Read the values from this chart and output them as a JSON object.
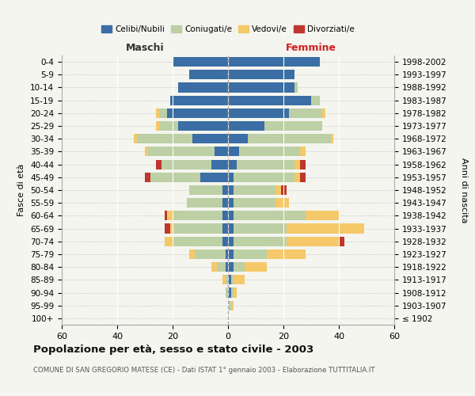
{
  "age_groups": [
    "100+",
    "95-99",
    "90-94",
    "85-89",
    "80-84",
    "75-79",
    "70-74",
    "65-69",
    "60-64",
    "55-59",
    "50-54",
    "45-49",
    "40-44",
    "35-39",
    "30-34",
    "25-29",
    "20-24",
    "15-19",
    "10-14",
    "5-9",
    "0-4"
  ],
  "birth_years": [
    "≤ 1902",
    "1903-1907",
    "1908-1912",
    "1913-1917",
    "1918-1922",
    "1923-1927",
    "1928-1932",
    "1933-1937",
    "1938-1942",
    "1943-1947",
    "1948-1952",
    "1953-1957",
    "1958-1962",
    "1963-1967",
    "1968-1972",
    "1973-1977",
    "1978-1982",
    "1983-1987",
    "1988-1992",
    "1993-1997",
    "1998-2002"
  ],
  "colors": {
    "celibi": "#3A6EA5",
    "coniugati": "#BDD0A5",
    "vedovi": "#F5C96A",
    "divorziati": "#C0362C"
  },
  "males": {
    "celibi": [
      0,
      0,
      0,
      0,
      1,
      1,
      2,
      2,
      2,
      2,
      2,
      10,
      6,
      5,
      13,
      18,
      22,
      21,
      18,
      14,
      20
    ],
    "coniugati": [
      0,
      0,
      1,
      1,
      3,
      11,
      18,
      18,
      18,
      13,
      12,
      18,
      18,
      24,
      20,
      7,
      3,
      0,
      0,
      0,
      0
    ],
    "vedovi": [
      0,
      0,
      0,
      1,
      2,
      2,
      3,
      1,
      2,
      0,
      0,
      0,
      0,
      1,
      1,
      1,
      1,
      0,
      0,
      0,
      0
    ],
    "divorziati": [
      0,
      0,
      0,
      0,
      0,
      0,
      0,
      2,
      1,
      0,
      0,
      2,
      2,
      0,
      0,
      0,
      0,
      0,
      0,
      0,
      0
    ]
  },
  "females": {
    "celibi": [
      0,
      0,
      1,
      1,
      2,
      2,
      2,
      2,
      2,
      2,
      2,
      2,
      3,
      4,
      7,
      13,
      22,
      30,
      24,
      24,
      33
    ],
    "coniugati": [
      0,
      1,
      1,
      1,
      4,
      12,
      19,
      19,
      26,
      15,
      15,
      22,
      21,
      22,
      30,
      21,
      12,
      3,
      1,
      0,
      0
    ],
    "vedovi": [
      0,
      1,
      1,
      4,
      8,
      14,
      19,
      28,
      12,
      5,
      2,
      2,
      2,
      2,
      1,
      0,
      1,
      0,
      0,
      0,
      0
    ],
    "divorziati": [
      0,
      0,
      0,
      0,
      0,
      0,
      2,
      0,
      0,
      0,
      2,
      2,
      2,
      0,
      0,
      0,
      0,
      0,
      0,
      0,
      0
    ]
  },
  "title": "Popolazione per età, sesso e stato civile - 2003",
  "subtitle": "COMUNE DI SAN GREGORIO MATESE (CE) - Dati ISTAT 1° gennaio 2003 - Elaborazione TUTTITALIA.IT",
  "xlabel_left": "Maschi",
  "xlabel_right": "Femmine",
  "ylabel_left": "Fasce di età",
  "ylabel_right": "Anni di nascita",
  "xlim": 60,
  "legend_labels": [
    "Celibi/Nubili",
    "Coniugati/e",
    "Vedovi/e",
    "Divorziati/e"
  ],
  "background_color": "#f5f5f0"
}
